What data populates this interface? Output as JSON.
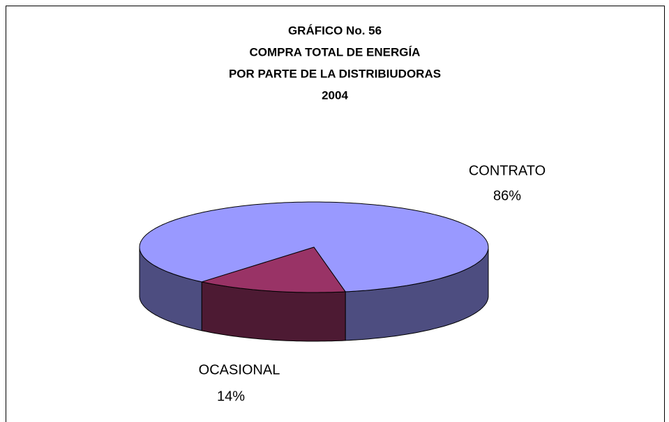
{
  "chart_data": {
    "type": "pie3d",
    "title": [
      "GRÁFICO No.  56",
      "COMPRA TOTAL DE ENERGÍA",
      "POR PARTE DE LA DISTRIBIUDORAS",
      "2004"
    ],
    "categories": [
      "CONTRATO",
      "OCASIONAL"
    ],
    "values": [
      86,
      14
    ],
    "value_labels": [
      "86%",
      "14%"
    ],
    "colors": [
      "#9999ff",
      "#993366"
    ],
    "side_colors": [
      "#4d4d80",
      "#4d1a33"
    ]
  }
}
